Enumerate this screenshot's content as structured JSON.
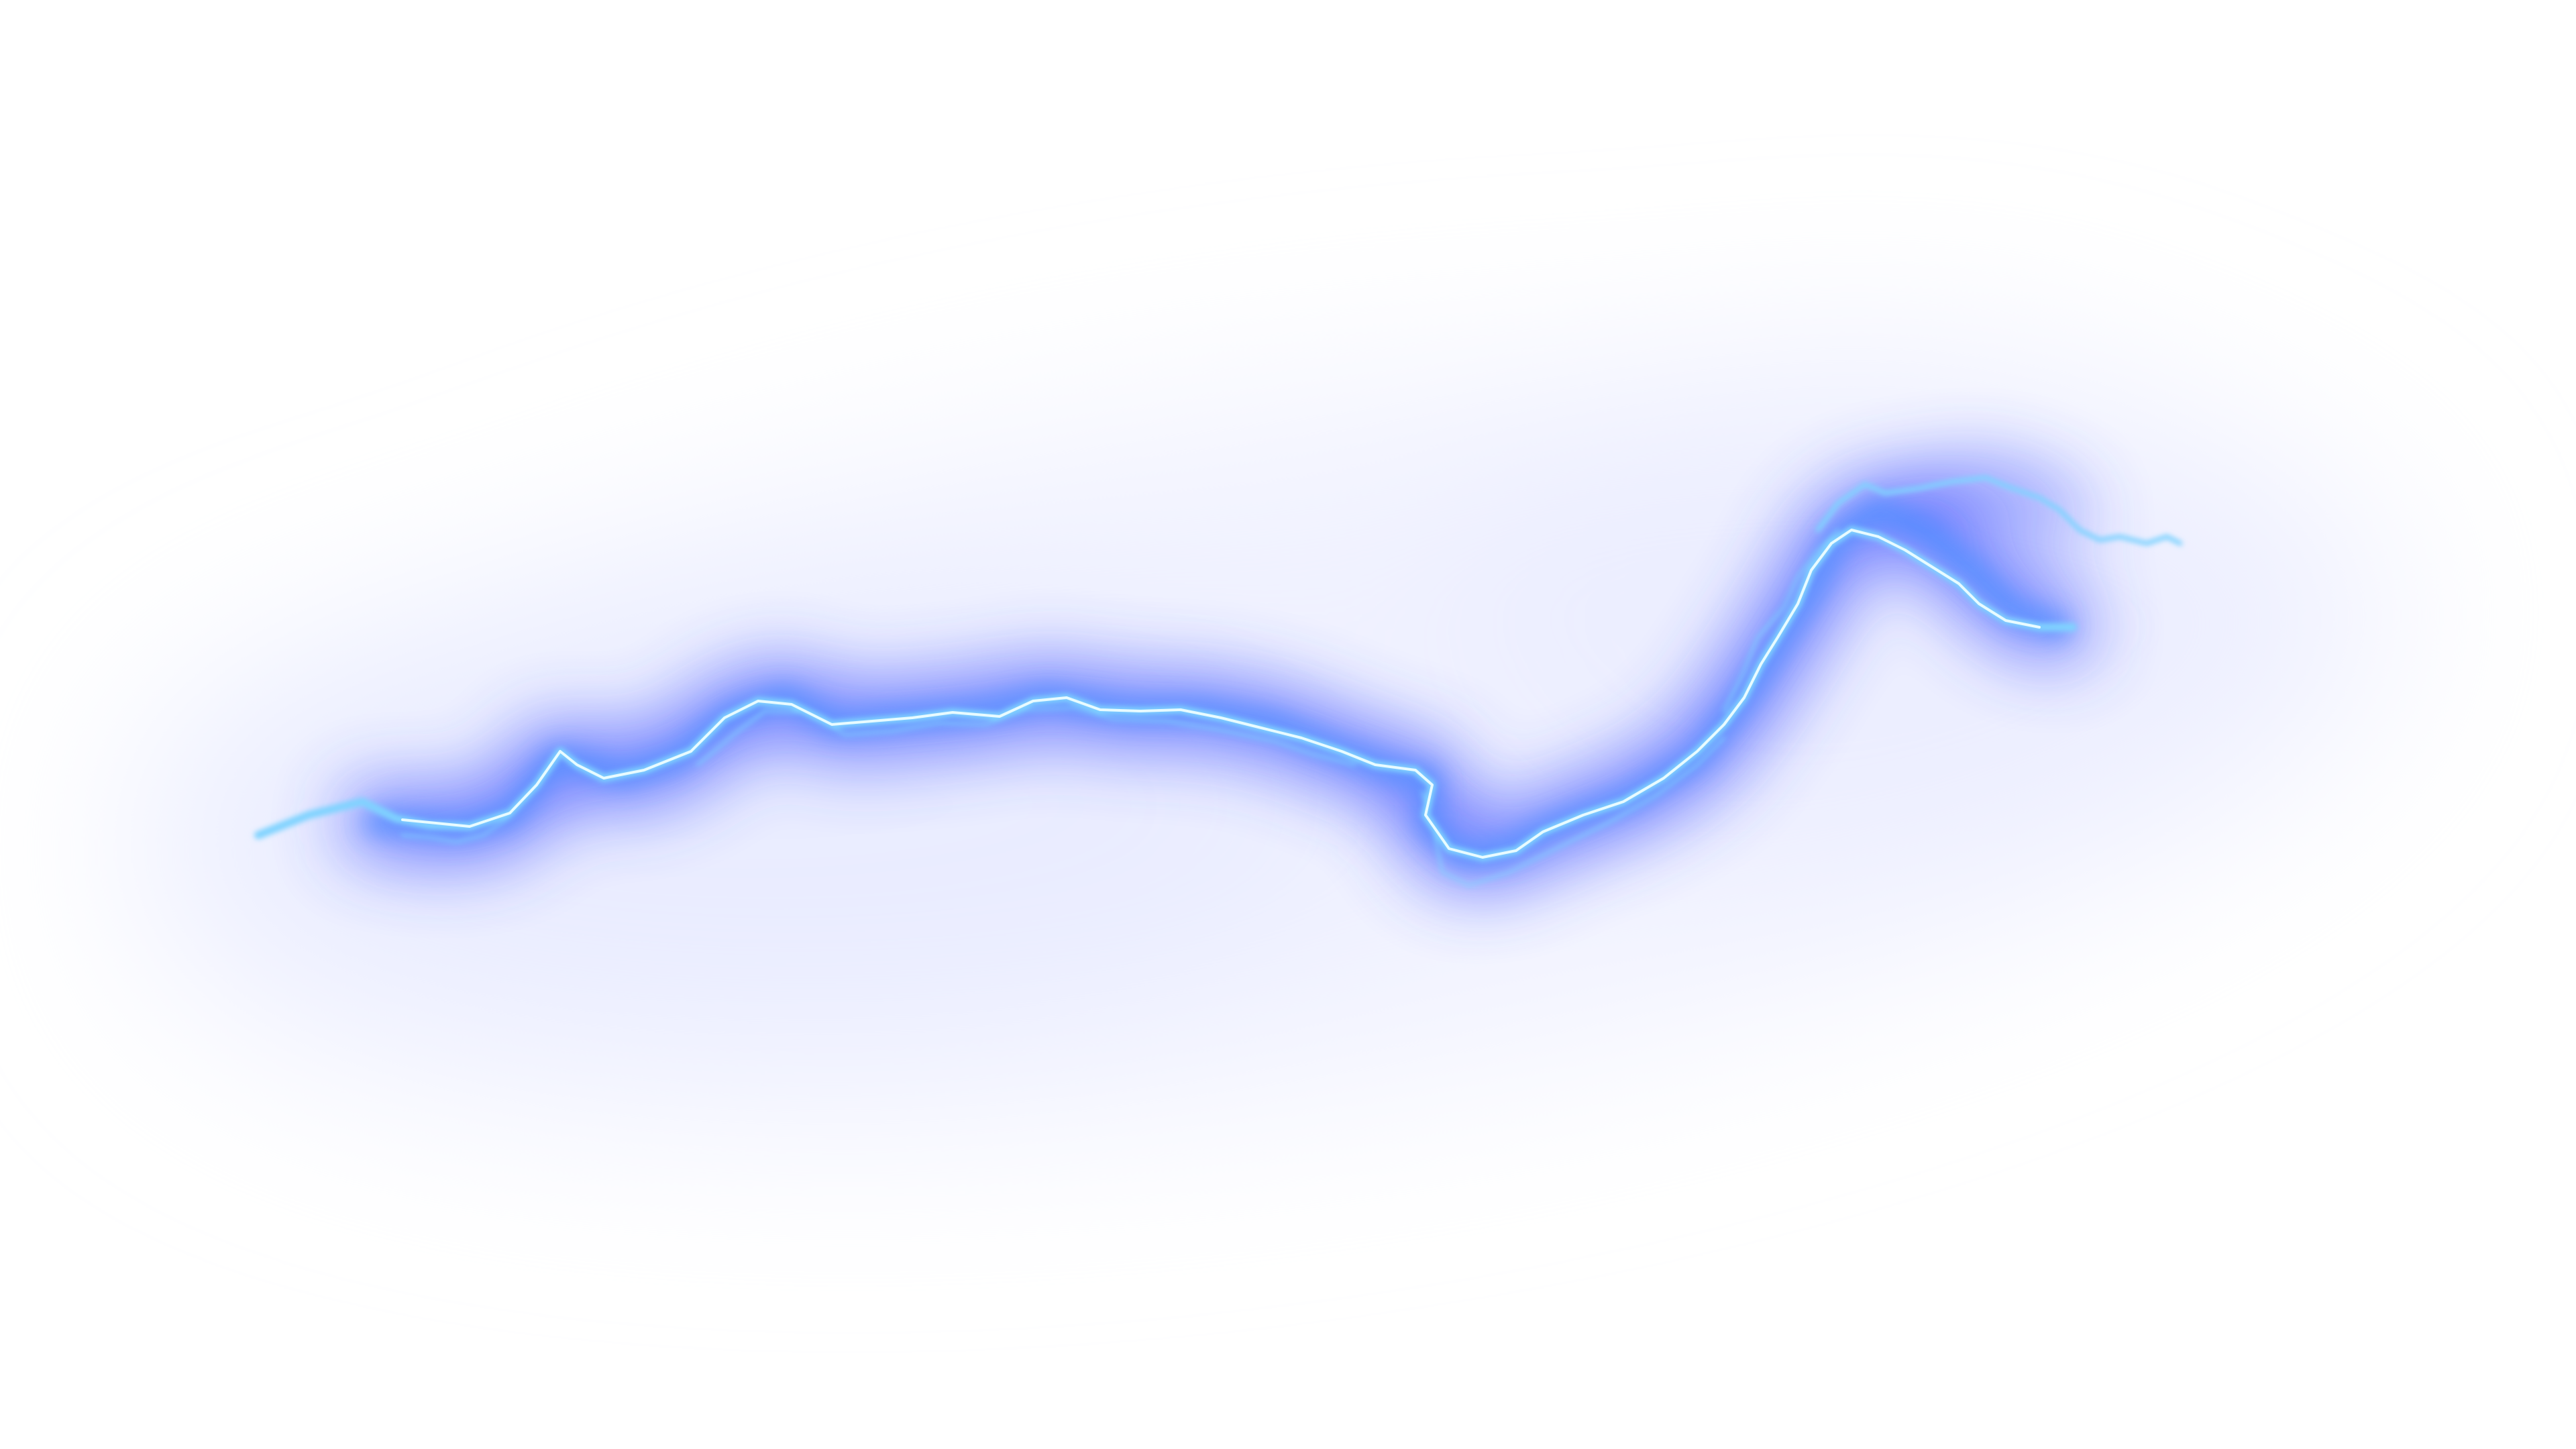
{
  "image": {
    "subject": "lightning-bolt",
    "background_color": "#ffffff",
    "haze_color": "#eef0ff",
    "glow_color": "#3a4dff",
    "mid_glow_color": "#4f8dff",
    "bolt_color": "#7fd3ff",
    "core_color": "#e8fbff",
    "icon": "lightning-icon"
  }
}
